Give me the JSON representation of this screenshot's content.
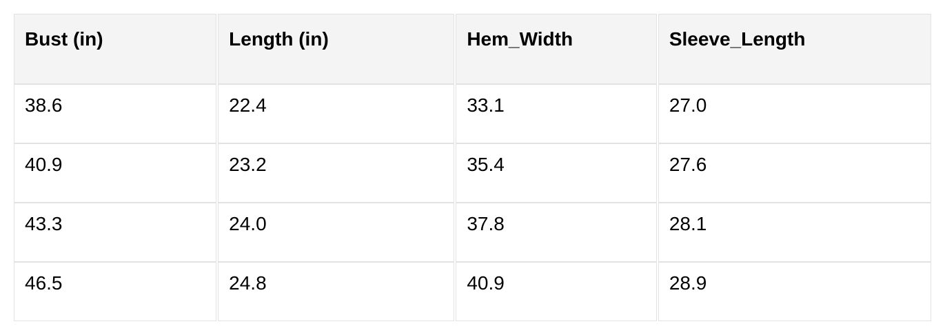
{
  "chart_data": {
    "type": "table",
    "title": "",
    "columns": [
      "Bust (in)",
      "Length (in)",
      "Hem_Width",
      "Sleeve_Length"
    ],
    "rows": [
      [
        "38.6",
        "22.4",
        "33.1",
        "27.0"
      ],
      [
        "40.9",
        "23.2",
        "35.4",
        "27.6"
      ],
      [
        "43.3",
        "24.0",
        "37.8",
        "28.1"
      ],
      [
        "46.5",
        "24.8",
        "40.9",
        "28.9"
      ]
    ],
    "colors": {
      "header_background": "#f4f4f4",
      "cell_background": "#ffffff",
      "border": "#e2e2e2",
      "text": "#000000"
    }
  }
}
